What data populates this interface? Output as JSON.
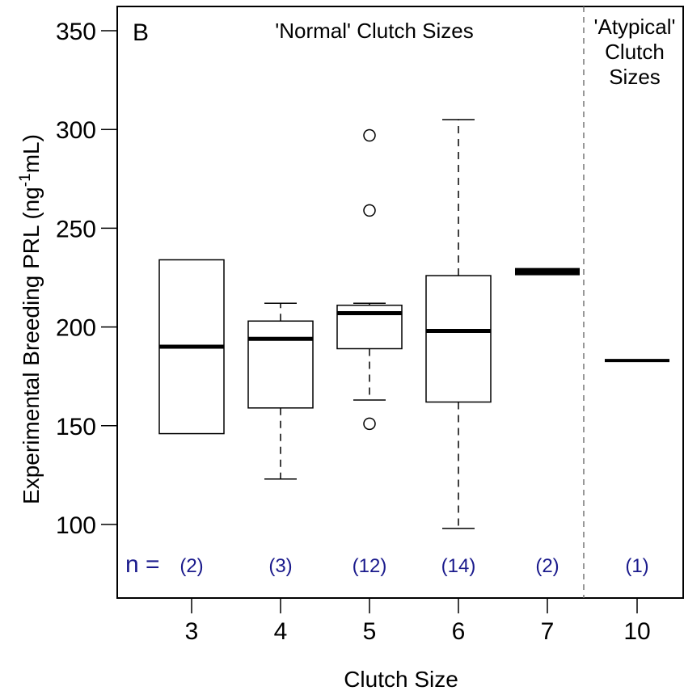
{
  "chart_data": {
    "type": "box",
    "panel_label": "B",
    "xlabel": "Clutch Size",
    "ylabel_main": "Experimental Breeding PRL (ng",
    "ylabel_sup": "-1",
    "ylabel_end": "mL)",
    "ylim": [
      100,
      350
    ],
    "yticks": [
      100,
      150,
      200,
      250,
      300,
      350
    ],
    "region_labels": {
      "normal": "'Normal' Clutch Sizes",
      "atypical_lines": [
        "'Atypical'",
        "Clutch",
        "Sizes"
      ]
    },
    "n_prefix": "n =",
    "n_color": "#1a1a8c",
    "groups": [
      {
        "category": "3",
        "n": "(2)",
        "min": 146,
        "q1": 146,
        "median": 190,
        "q3": 234,
        "max": 234,
        "outliers": []
      },
      {
        "category": "4",
        "n": "(3)",
        "min": 123,
        "q1": 159,
        "median": 194,
        "q3": 203,
        "max": 212,
        "outliers": []
      },
      {
        "category": "5",
        "n": "(12)",
        "min": 163,
        "q1": 189,
        "median": 207,
        "q3": 211,
        "max": 212,
        "outliers": [
          151,
          259,
          297
        ]
      },
      {
        "category": "6",
        "n": "(14)",
        "min": 98,
        "q1": 162,
        "median": 198,
        "q3": 226,
        "max": 305,
        "outliers": []
      },
      {
        "category": "7",
        "n": "(2)",
        "min": 227,
        "q1": 227,
        "median": 228,
        "q3": 229,
        "max": 229,
        "outliers": []
      },
      {
        "category": "10",
        "n": "(1)",
        "min": 183,
        "q1": 183,
        "median": 183,
        "q3": 183,
        "max": 183,
        "outliers": []
      }
    ]
  }
}
